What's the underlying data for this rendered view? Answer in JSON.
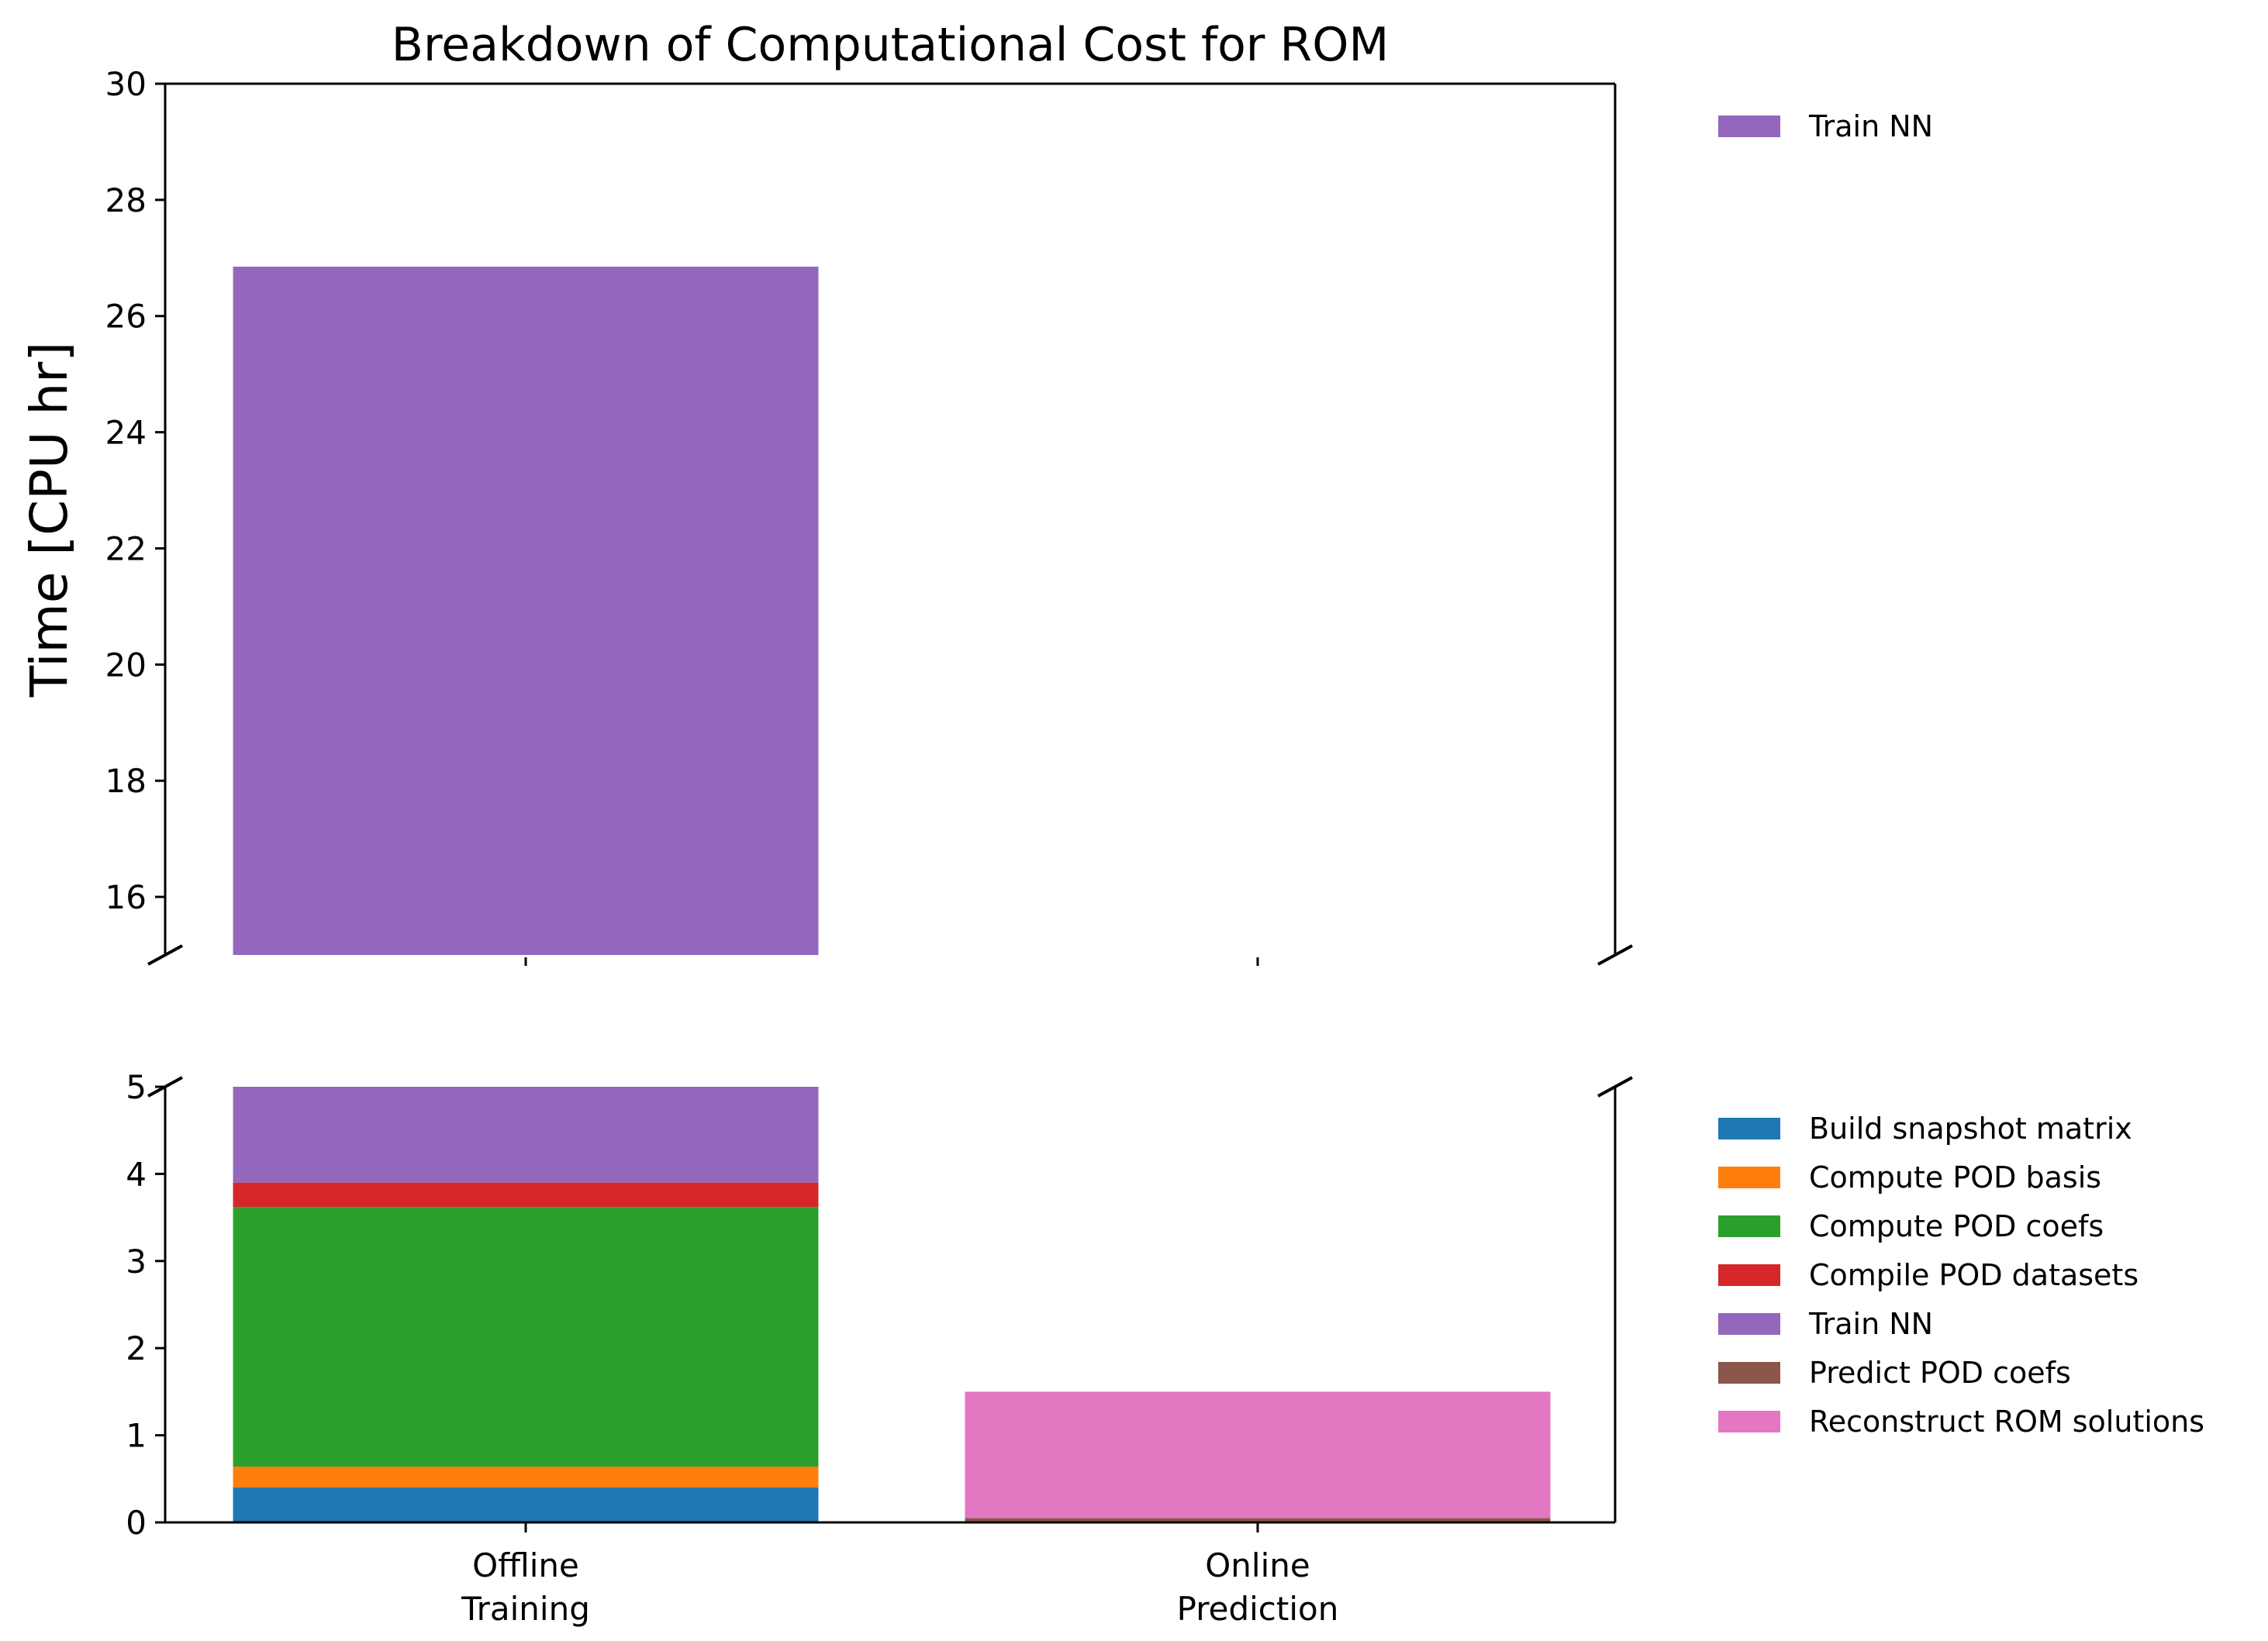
{
  "chart_data": {
    "type": "bar",
    "stacked": true,
    "broken_y_axis": true,
    "title": "Breakdown of Computational Cost for ROM",
    "ylabel": "Time [CPU hr]",
    "categories": [
      "Offline\nTraining",
      "Online\nPrediction"
    ],
    "category_lines": [
      [
        "Offline",
        "Training"
      ],
      [
        "Online",
        "Prediction"
      ]
    ],
    "upper_panel": {
      "ylim": [
        15,
        30
      ],
      "yticks": [
        "16",
        "18",
        "20",
        "22",
        "24",
        "26",
        "28",
        "30"
      ],
      "ytick_values": [
        16,
        18,
        20,
        22,
        24,
        26,
        28,
        30
      ],
      "legend": [
        "Train NN"
      ],
      "legend_placement": "outside-right-top"
    },
    "lower_panel": {
      "ylim": [
        0,
        5
      ],
      "yticks": [
        "0",
        "1",
        "2",
        "3",
        "4",
        "5"
      ],
      "ytick_values": [
        0,
        1,
        2,
        3,
        4,
        5
      ],
      "legend_placement": "outside-right"
    },
    "series": [
      {
        "name": "Build snapshot matrix",
        "color": "#1f77b4",
        "values": [
          0.4,
          0
        ]
      },
      {
        "name": "Compute POD basis",
        "color": "#ff7f0e",
        "values": [
          0.24,
          0
        ]
      },
      {
        "name": "Compute POD coefs",
        "color": "#2ca02c",
        "values": [
          2.98,
          0
        ]
      },
      {
        "name": "Compile POD datasets",
        "color": "#d62728",
        "values": [
          0.28,
          0
        ]
      },
      {
        "name": "Train NN",
        "color": "#9467bd",
        "values": [
          22.95,
          0
        ]
      },
      {
        "name": "Predict POD coefs",
        "color": "#8c564b",
        "values": [
          0,
          0.05
        ]
      },
      {
        "name": "Reconstruct ROM solutions",
        "color": "#e377c2",
        "values": [
          0,
          1.45
        ]
      }
    ],
    "grid": false
  }
}
